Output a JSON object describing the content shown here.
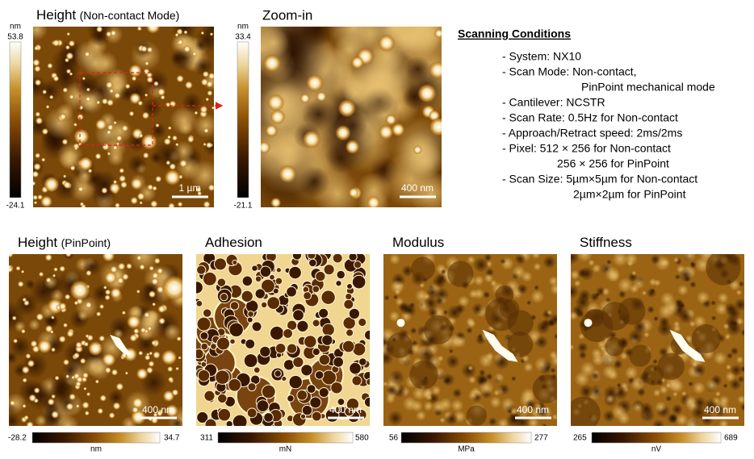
{
  "top": {
    "height_panel": {
      "title": "Height",
      "subtitle": "(Non-contact Mode)",
      "colorbar": {
        "unit": "nm",
        "max": "53.8",
        "min": "-24.1"
      },
      "scale_bar": "1 µm"
    },
    "zoom_panel": {
      "title": "Zoom-in",
      "colorbar": {
        "unit": "nm",
        "max": "33.4",
        "min": "-21.1"
      },
      "scale_bar": "400 nm"
    }
  },
  "conditions": {
    "title": "Scanning Conditions",
    "lines": [
      "- System:  NX10",
      "- Scan Mode: Non-contact,",
      "PinPoint mechanical mode",
      "- Cantilever: NCSTR",
      "- Scan Rate: 0.5Hz for Non-contact",
      "- Approach/Retract speed: 2ms/2ms",
      "- Pixel: 512 × 256 for Non-contact",
      "256 × 256 for PinPoint",
      "- Scan Size: 5µm×5µm for Non-contact",
      "2µm×2µm  for PinPoint"
    ]
  },
  "bottom": [
    {
      "title": "Height",
      "subtitle": "(PinPoint)",
      "scale_bar": "400 nm",
      "colorbar": {
        "min": "-28.2",
        "max": "34.7",
        "unit": "nm"
      }
    },
    {
      "title": "Adhesion",
      "scale_bar": "400 nm",
      "colorbar": {
        "min": "311",
        "max": "580",
        "unit": "mN"
      }
    },
    {
      "title": "Modulus",
      "scale_bar": "400 nm",
      "colorbar": {
        "min": "56",
        "max": "277",
        "unit": "MPa"
      }
    },
    {
      "title": "Stiffness",
      "scale_bar": "400 nm",
      "colorbar": {
        "min": "265",
        "max": "689",
        "unit": "nV"
      }
    }
  ]
}
